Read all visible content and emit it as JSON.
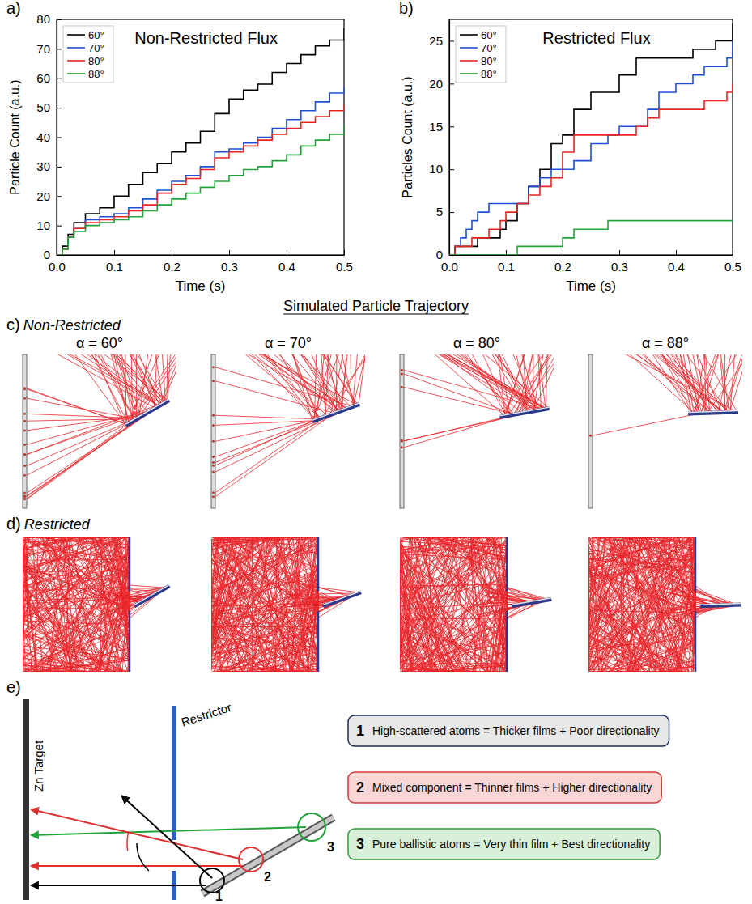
{
  "chart_data": [
    {
      "type": "line",
      "title": "Non-Restricted Flux",
      "x_label": "Time (s)",
      "y_label": "Particle Count (a.u.)",
      "line_style": "step",
      "legend": "upper left",
      "grid": false,
      "x": [
        0,
        0.01,
        0.02,
        0.03,
        0.05,
        0.075,
        0.1,
        0.125,
        0.15,
        0.175,
        0.2,
        0.225,
        0.25,
        0.275,
        0.3,
        0.325,
        0.35,
        0.375,
        0.4,
        0.425,
        0.45,
        0.475,
        0.5
      ],
      "series": [
        {
          "name": "60°",
          "color": "#000000",
          "values": [
            0,
            3,
            7,
            11,
            14,
            16,
            20,
            24,
            28,
            31,
            35,
            38,
            42,
            48,
            53,
            56,
            58,
            62,
            65,
            68,
            71,
            73,
            77
          ]
        },
        {
          "name": "70°",
          "color": "#1f4fd6",
          "values": [
            0,
            2,
            6,
            9,
            12,
            13,
            14,
            16,
            19,
            22,
            25,
            27,
            30,
            35,
            36,
            38,
            40,
            43,
            46,
            49,
            52,
            55,
            57
          ]
        },
        {
          "name": "80°",
          "color": "#e8261f",
          "values": [
            0,
            2,
            6,
            9,
            11,
            12,
            13,
            15,
            17,
            21,
            24,
            26,
            29,
            33,
            35,
            37,
            39,
            41,
            43,
            45,
            47,
            49,
            51
          ]
        },
        {
          "name": "88°",
          "color": "#22a33a",
          "values": [
            0,
            2,
            6,
            8,
            10,
            11,
            12,
            13,
            15,
            17,
            19,
            21,
            23,
            25,
            27,
            29,
            30,
            32,
            34,
            37,
            39,
            41,
            44
          ]
        }
      ],
      "xlim": [
        0,
        0.5
      ],
      "ylim": [
        0,
        80
      ],
      "xticks": [
        {
          "value": 0,
          "label": "0.0"
        },
        0.1,
        0.2,
        0.3,
        0.4,
        0.5
      ],
      "yticks": [
        0,
        10,
        20,
        30,
        40,
        50,
        60,
        70,
        80
      ]
    },
    {
      "type": "line",
      "title": "Restricted Flux",
      "x_label": "Time (s)",
      "y_label": "Particles Count (a.u.)",
      "line_style": "step",
      "legend": "upper left",
      "grid": false,
      "x": [
        0,
        0.01,
        0.02,
        0.03,
        0.04,
        0.05,
        0.07,
        0.09,
        0.1,
        0.12,
        0.14,
        0.16,
        0.18,
        0.2,
        0.22,
        0.25,
        0.28,
        0.3,
        0.33,
        0.35,
        0.37,
        0.4,
        0.43,
        0.45,
        0.47,
        0.49,
        0.5
      ],
      "series": [
        {
          "name": "60°",
          "color": "#000000",
          "values": [
            0,
            1,
            1,
            1,
            1,
            2,
            2,
            3,
            4,
            6,
            8,
            10,
            13,
            14,
            17,
            19,
            19,
            21,
            23,
            23,
            23,
            23,
            24,
            24,
            25,
            25,
            27
          ]
        },
        {
          "name": "70°",
          "color": "#1f4fd6",
          "values": [
            0,
            1,
            2,
            3,
            4,
            5,
            6,
            6,
            6,
            6,
            8,
            9,
            10,
            10,
            11,
            13,
            14,
            15,
            15,
            17,
            19,
            20,
            21,
            22,
            22,
            23,
            25
          ]
        },
        {
          "name": "80°",
          "color": "#e8261f",
          "values": [
            0,
            1,
            1,
            1,
            2,
            2,
            3,
            4,
            5,
            6,
            7,
            8,
            9,
            12,
            14,
            14,
            14,
            14,
            15,
            16,
            17,
            17,
            17,
            18,
            18,
            19,
            20
          ]
        },
        {
          "name": "88°",
          "color": "#22a33a",
          "values": [
            0,
            0,
            0,
            0,
            0,
            0,
            0,
            0,
            0,
            1,
            1,
            1,
            1,
            2,
            3,
            3,
            4,
            4,
            4,
            4,
            4,
            4,
            4,
            4,
            4,
            4,
            4
          ]
        }
      ],
      "xlim": [
        0,
        0.5
      ],
      "ylim": [
        0,
        27.5
      ],
      "xticks": [
        {
          "value": 0,
          "label": "0.0"
        },
        0.1,
        0.2,
        0.3,
        0.4,
        0.5
      ],
      "yticks": [
        0,
        5,
        10,
        15,
        20,
        25
      ]
    }
  ],
  "panel_letters": {
    "a": "a)",
    "b": "b)"
  },
  "simulation": {
    "title": "Simulated Particle Trajectory",
    "angles": [
      {
        "label": "α = 60°",
        "value": 60
      },
      {
        "label": "α = 70°",
        "value": 70
      },
      {
        "label": "α = 80°",
        "value": 80
      },
      {
        "label": "α = 88°",
        "value": 88
      }
    ],
    "rows": [
      {
        "letter": "c)",
        "label": "Non-Restricted",
        "restricted": false
      },
      {
        "letter": "d)",
        "label": "Restricted",
        "restricted": true
      }
    ]
  },
  "schematic": {
    "letter": "e)",
    "restrictor": "Restrictor",
    "target": "Zn Target",
    "items": [
      {
        "number": "1",
        "text": "High-scattered atoms = Thicker films + Poor directionality"
      },
      {
        "number": "2",
        "text": "Mixed component = Thinner films + Higher directionality"
      },
      {
        "number": "3",
        "text": "Pure ballistic atoms = Very thin film + Best directionality"
      }
    ]
  }
}
